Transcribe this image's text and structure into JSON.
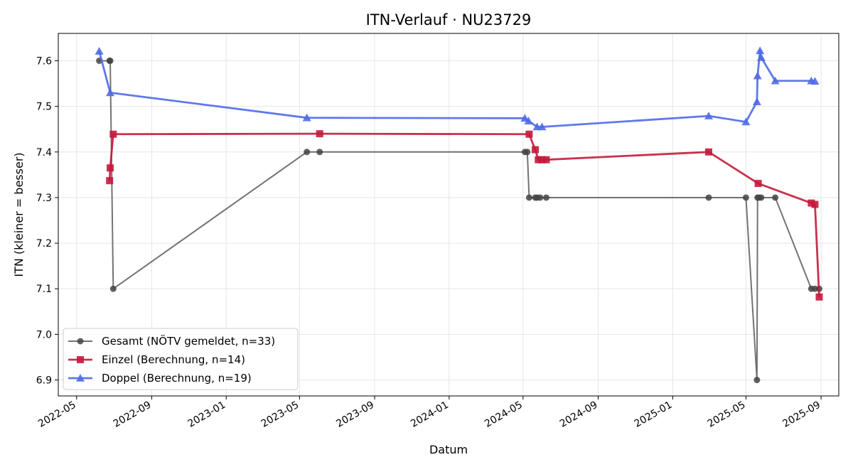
{
  "chart_data": {
    "type": "line",
    "title": "ITN-Verlauf · NU23729",
    "xlabel": "Datum",
    "ylabel": "ITN  (kleiner = besser)",
    "x_axis": "date",
    "xlim": [
      "2022-04-01",
      "2025-09-30"
    ],
    "ylim": [
      6.865,
      7.66
    ],
    "x_ticks": [
      "2022-05-01",
      "2022-09-01",
      "2023-01-01",
      "2023-05-01",
      "2023-09-01",
      "2024-01-01",
      "2024-05-01",
      "2024-09-01",
      "2025-01-01",
      "2025-05-01",
      "2025-09-01"
    ],
    "x_tick_labels": [
      "2022-05",
      "2022-09",
      "2023-01",
      "2023-05",
      "2023-09",
      "2024-01",
      "2024-05",
      "2024-09",
      "2025-01",
      "2025-05",
      "2025-09"
    ],
    "y_ticks": [
      6.9,
      7.0,
      7.1,
      7.2,
      7.3,
      7.4,
      7.5,
      7.6
    ],
    "y_tick_labels": [
      "6.9",
      "7.0",
      "7.1",
      "7.2",
      "7.3",
      "7.4",
      "7.5",
      "7.6"
    ],
    "grid": true,
    "legend_position": "lower-left",
    "series": [
      {
        "name": "Gesamt (NÖTV gemeldet, n=33)",
        "color": "#444444",
        "marker": "circle",
        "x": [
          "2022-06-07",
          "2022-06-24",
          "2022-06-25",
          "2022-06-30",
          "2023-05-13",
          "2023-06-03",
          "2024-05-04",
          "2024-05-08",
          "2024-05-11",
          "2024-05-21",
          "2024-05-24",
          "2024-05-29",
          "2024-06-08",
          "2025-03-01",
          "2025-05-01",
          "2025-05-19",
          "2025-05-20",
          "2025-05-22",
          "2025-05-26",
          "2025-06-18",
          "2025-08-16",
          "2025-08-22",
          "2025-08-29"
        ],
        "y": [
          7.6,
          7.6,
          7.6,
          7.1,
          7.4,
          7.4,
          7.4,
          7.4,
          7.3,
          7.3,
          7.3,
          7.3,
          7.3,
          7.3,
          7.3,
          6.9,
          7.3,
          7.3,
          7.3,
          7.3,
          7.1,
          7.1,
          7.1
        ]
      },
      {
        "name": "Einzel (Berechnung, n=14)",
        "color": "#c41a3b",
        "marker": "square",
        "x": [
          "2022-06-24",
          "2022-06-25",
          "2022-06-30",
          "2023-06-03",
          "2024-05-11",
          "2024-05-21",
          "2024-05-26",
          "2024-06-01",
          "2024-06-08",
          "2025-03-01",
          "2025-05-21",
          "2025-08-16",
          "2025-08-22",
          "2025-08-29"
        ],
        "y": [
          7.337,
          7.365,
          7.439,
          7.44,
          7.439,
          7.405,
          7.383,
          7.383,
          7.383,
          7.4,
          7.331,
          7.288,
          7.285,
          7.082
        ]
      },
      {
        "name": "Doppel (Berechnung, n=19)",
        "color": "#4f6ae8",
        "marker": "triangle",
        "x": [
          "2022-06-07",
          "2022-06-25",
          "2023-05-13",
          "2024-05-04",
          "2024-05-10",
          "2024-05-24",
          "2024-06-01",
          "2025-03-01",
          "2025-05-01",
          "2025-05-19",
          "2025-05-20",
          "2025-05-24",
          "2025-05-26",
          "2025-06-18",
          "2025-08-16",
          "2025-08-22"
        ],
        "y": [
          7.621,
          7.53,
          7.475,
          7.474,
          7.468,
          7.455,
          7.455,
          7.479,
          7.466,
          7.51,
          7.567,
          7.622,
          7.607,
          7.556,
          7.556,
          7.555
        ]
      }
    ]
  }
}
